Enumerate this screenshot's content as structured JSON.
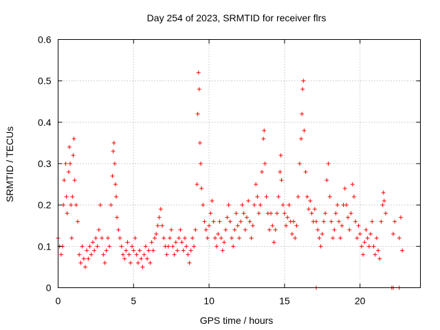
{
  "chart_data": {
    "type": "scatter",
    "title": "Day 254 of 2023, SRMTID for receiver flrs",
    "xlabel": "GPS time / hours",
    "ylabel": "SRMTID / TECUs",
    "xlim": [
      0,
      24
    ],
    "ylim": [
      0,
      0.6
    ],
    "x_ticks": [
      0,
      5,
      10,
      15,
      20
    ],
    "y_ticks": [
      0,
      0.1,
      0.2,
      0.3,
      0.4,
      0.5,
      0.6
    ],
    "grid": true,
    "marker": "+",
    "series_color": "#ff0000",
    "series": [
      {
        "name": "SRMTID",
        "points": [
          [
            0.0,
            0.12
          ],
          [
            0.1,
            0.1
          ],
          [
            0.2,
            0.08
          ],
          [
            0.3,
            0.1
          ],
          [
            0.35,
            0.2
          ],
          [
            0.4,
            0.26
          ],
          [
            0.5,
            0.3
          ],
          [
            0.55,
            0.22
          ],
          [
            0.6,
            0.18
          ],
          [
            0.7,
            0.28
          ],
          [
            0.75,
            0.34
          ],
          [
            0.8,
            0.3
          ],
          [
            0.85,
            0.2
          ],
          [
            0.9,
            0.12
          ],
          [
            0.95,
            0.22
          ],
          [
            1.0,
            0.32
          ],
          [
            1.05,
            0.36
          ],
          [
            1.1,
            0.26
          ],
          [
            1.2,
            0.2
          ],
          [
            1.3,
            0.16
          ],
          [
            1.4,
            0.08
          ],
          [
            1.5,
            0.06
          ],
          [
            1.6,
            0.1
          ],
          [
            1.7,
            0.07
          ],
          [
            1.8,
            0.05
          ],
          [
            1.9,
            0.09
          ],
          [
            2.0,
            0.07
          ],
          [
            2.1,
            0.1
          ],
          [
            2.2,
            0.08
          ],
          [
            2.3,
            0.11
          ],
          [
            2.4,
            0.09
          ],
          [
            2.5,
            0.12
          ],
          [
            2.6,
            0.1
          ],
          [
            2.7,
            0.14
          ],
          [
            2.8,
            0.2
          ],
          [
            2.9,
            0.12
          ],
          [
            3.0,
            0.08
          ],
          [
            3.1,
            0.06
          ],
          [
            3.2,
            0.09
          ],
          [
            3.3,
            0.12
          ],
          [
            3.4,
            0.1
          ],
          [
            3.5,
            0.2
          ],
          [
            3.6,
            0.27
          ],
          [
            3.65,
            0.33
          ],
          [
            3.7,
            0.35
          ],
          [
            3.75,
            0.3
          ],
          [
            3.8,
            0.25
          ],
          [
            3.85,
            0.22
          ],
          [
            3.9,
            0.17
          ],
          [
            4.0,
            0.14
          ],
          [
            4.1,
            0.12
          ],
          [
            4.2,
            0.1
          ],
          [
            4.3,
            0.08
          ],
          [
            4.4,
            0.07
          ],
          [
            4.5,
            0.09
          ],
          [
            4.6,
            0.11
          ],
          [
            4.7,
            0.08
          ],
          [
            4.8,
            0.06
          ],
          [
            4.9,
            0.1
          ],
          [
            5.0,
            0.09
          ],
          [
            5.1,
            0.12
          ],
          [
            5.2,
            0.08
          ],
          [
            5.3,
            0.06
          ],
          [
            5.4,
            0.09
          ],
          [
            5.5,
            0.07
          ],
          [
            5.6,
            0.05
          ],
          [
            5.7,
            0.08
          ],
          [
            5.8,
            0.1
          ],
          [
            5.9,
            0.07
          ],
          [
            6.0,
            0.09
          ],
          [
            6.1,
            0.06
          ],
          [
            6.2,
            0.11
          ],
          [
            6.3,
            0.09
          ],
          [
            6.4,
            0.12
          ],
          [
            6.5,
            0.13
          ],
          [
            6.6,
            0.15
          ],
          [
            6.7,
            0.17
          ],
          [
            6.8,
            0.19
          ],
          [
            6.9,
            0.15
          ],
          [
            7.0,
            0.12
          ],
          [
            7.1,
            0.1
          ],
          [
            7.2,
            0.08
          ],
          [
            7.3,
            0.1
          ],
          [
            7.4,
            0.12
          ],
          [
            7.5,
            0.14
          ],
          [
            7.6,
            0.1
          ],
          [
            7.7,
            0.08
          ],
          [
            7.8,
            0.11
          ],
          [
            7.9,
            0.09
          ],
          [
            8.0,
            0.12
          ],
          [
            8.1,
            0.14
          ],
          [
            8.2,
            0.11
          ],
          [
            8.3,
            0.09
          ],
          [
            8.4,
            0.12
          ],
          [
            8.5,
            0.1
          ],
          [
            8.6,
            0.08
          ],
          [
            8.7,
            0.06
          ],
          [
            8.8,
            0.09
          ],
          [
            8.9,
            0.12
          ],
          [
            9.0,
            0.1
          ],
          [
            9.1,
            0.14
          ],
          [
            9.2,
            0.25
          ],
          [
            9.25,
            0.42
          ],
          [
            9.3,
            0.52
          ],
          [
            9.35,
            0.48
          ],
          [
            9.4,
            0.35
          ],
          [
            9.45,
            0.3
          ],
          [
            9.5,
            0.24
          ],
          [
            9.6,
            0.2
          ],
          [
            9.7,
            0.16
          ],
          [
            9.8,
            0.14
          ],
          [
            9.9,
            0.12
          ],
          [
            10.0,
            0.15
          ],
          [
            10.1,
            0.18
          ],
          [
            10.2,
            0.21
          ],
          [
            10.3,
            0.16
          ],
          [
            10.4,
            0.12
          ],
          [
            10.5,
            0.1
          ],
          [
            10.6,
            0.13
          ],
          [
            10.7,
            0.16
          ],
          [
            10.8,
            0.12
          ],
          [
            10.9,
            0.09
          ],
          [
            11.0,
            0.11
          ],
          [
            11.1,
            0.14
          ],
          [
            11.2,
            0.17
          ],
          [
            11.3,
            0.2
          ],
          [
            11.4,
            0.16
          ],
          [
            11.5,
            0.12
          ],
          [
            11.6,
            0.1
          ],
          [
            11.7,
            0.14
          ],
          [
            11.8,
            0.18
          ],
          [
            11.9,
            0.15
          ],
          [
            12.0,
            0.12
          ],
          [
            12.1,
            0.16
          ],
          [
            12.2,
            0.2
          ],
          [
            12.3,
            0.18
          ],
          [
            12.4,
            0.14
          ],
          [
            12.5,
            0.17
          ],
          [
            12.6,
            0.21
          ],
          [
            12.7,
            0.16
          ],
          [
            12.8,
            0.12
          ],
          [
            12.9,
            0.15
          ],
          [
            13.0,
            0.2
          ],
          [
            13.1,
            0.25
          ],
          [
            13.2,
            0.22
          ],
          [
            13.3,
            0.18
          ],
          [
            13.4,
            0.2
          ],
          [
            13.5,
            0.28
          ],
          [
            13.6,
            0.36
          ],
          [
            13.65,
            0.38
          ],
          [
            13.7,
            0.3
          ],
          [
            13.8,
            0.22
          ],
          [
            13.9,
            0.18
          ],
          [
            14.0,
            0.14
          ],
          [
            14.1,
            0.18
          ],
          [
            14.2,
            0.15
          ],
          [
            14.3,
            0.11
          ],
          [
            14.4,
            0.14
          ],
          [
            14.5,
            0.18
          ],
          [
            14.6,
            0.22
          ],
          [
            14.7,
            0.28
          ],
          [
            14.75,
            0.32
          ],
          [
            14.8,
            0.26
          ],
          [
            14.9,
            0.2
          ],
          [
            15.0,
            0.18
          ],
          [
            15.1,
            0.15
          ],
          [
            15.2,
            0.17
          ],
          [
            15.3,
            0.2
          ],
          [
            15.4,
            0.16
          ],
          [
            15.5,
            0.13
          ],
          [
            15.6,
            0.16
          ],
          [
            15.7,
            0.12
          ],
          [
            15.8,
            0.15
          ],
          [
            15.9,
            0.22
          ],
          [
            16.0,
            0.3
          ],
          [
            16.1,
            0.36
          ],
          [
            16.15,
            0.42
          ],
          [
            16.2,
            0.48
          ],
          [
            16.25,
            0.5
          ],
          [
            16.3,
            0.38
          ],
          [
            16.4,
            0.28
          ],
          [
            16.5,
            0.22
          ],
          [
            16.6,
            0.19
          ],
          [
            16.7,
            0.21
          ],
          [
            16.8,
            0.18
          ],
          [
            16.9,
            0.16
          ],
          [
            17.0,
            0.19
          ],
          [
            17.1,
            0.16
          ],
          [
            17.2,
            0.14
          ],
          [
            17.3,
            0.12
          ],
          [
            17.4,
            0.1
          ],
          [
            17.5,
            0.13
          ],
          [
            17.6,
            0.16
          ],
          [
            17.7,
            0.18
          ],
          [
            17.8,
            0.26
          ],
          [
            17.9,
            0.3
          ],
          [
            18.0,
            0.22
          ],
          [
            18.1,
            0.16
          ],
          [
            18.2,
            0.12
          ],
          [
            18.3,
            0.14
          ],
          [
            18.4,
            0.18
          ],
          [
            18.5,
            0.2
          ],
          [
            18.6,
            0.16
          ],
          [
            18.7,
            0.12
          ],
          [
            18.8,
            0.15
          ],
          [
            18.9,
            0.2
          ],
          [
            19.0,
            0.24
          ],
          [
            19.1,
            0.2
          ],
          [
            19.2,
            0.17
          ],
          [
            19.3,
            0.14
          ],
          [
            19.4,
            0.18
          ],
          [
            19.5,
            0.25
          ],
          [
            19.6,
            0.22
          ],
          [
            19.7,
            0.16
          ],
          [
            19.8,
            0.12
          ],
          [
            19.9,
            0.15
          ],
          [
            20.0,
            0.13
          ],
          [
            20.1,
            0.1
          ],
          [
            20.2,
            0.08
          ],
          [
            20.3,
            0.11
          ],
          [
            20.4,
            0.14
          ],
          [
            20.5,
            0.12
          ],
          [
            20.6,
            0.1
          ],
          [
            20.7,
            0.13
          ],
          [
            20.8,
            0.16
          ],
          [
            20.9,
            0.1
          ],
          [
            21.0,
            0.08
          ],
          [
            21.1,
            0.12
          ],
          [
            21.2,
            0.09
          ],
          [
            21.3,
            0.07
          ],
          [
            21.4,
            0.16
          ],
          [
            21.5,
            0.2
          ],
          [
            21.55,
            0.23
          ],
          [
            21.6,
            0.21
          ],
          [
            21.7,
            0.18
          ],
          [
            22.2,
            0.13
          ],
          [
            22.3,
            0.16
          ],
          [
            22.6,
            0.12
          ],
          [
            22.7,
            0.17
          ],
          [
            22.8,
            0.09
          ],
          [
            17.1,
            0.0
          ],
          [
            22.1,
            0.0
          ],
          [
            22.2,
            0.0
          ],
          [
            22.6,
            0.0
          ]
        ]
      }
    ]
  }
}
